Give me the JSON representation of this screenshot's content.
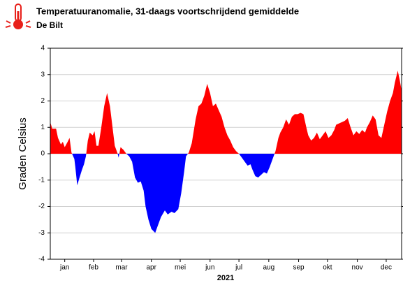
{
  "chart_data": {
    "type": "area",
    "title": "Temperatuuranomalie, 31-daags voortschrijdend gemiddelde",
    "subtitle": "De Bilt",
    "ylabel": "Graden Celsius",
    "xlabel": "2021",
    "pos_color": "#ff0000",
    "neg_color": "#0000ff",
    "grid": true,
    "xlim": [
      0,
      365
    ],
    "ylim": [
      -4,
      4
    ],
    "yticks": [
      -4,
      -3,
      -2,
      -1,
      0,
      1,
      2,
      3,
      4
    ],
    "xticks": [
      {
        "value": 15,
        "label": "jan"
      },
      {
        "value": 45,
        "label": "feb"
      },
      {
        "value": 74,
        "label": "mar"
      },
      {
        "value": 105,
        "label": "apr"
      },
      {
        "value": 135,
        "label": "mei"
      },
      {
        "value": 166,
        "label": "jun"
      },
      {
        "value": 196,
        "label": "jul"
      },
      {
        "value": 227,
        "label": "aug"
      },
      {
        "value": 258,
        "label": "sep"
      },
      {
        "value": 288,
        "label": "okt"
      },
      {
        "value": 319,
        "label": "nov"
      },
      {
        "value": 349,
        "label": "dec"
      }
    ],
    "x": [
      0,
      2,
      6,
      8,
      11,
      13,
      15,
      18,
      20,
      22,
      25,
      26,
      28,
      30,
      33,
      35,
      37,
      39,
      41,
      44,
      46,
      48,
      50,
      53,
      56,
      59,
      62,
      65,
      67,
      70,
      71,
      73,
      76,
      79,
      82,
      85,
      88,
      91,
      94,
      97,
      99,
      102,
      105,
      109,
      112,
      115,
      119,
      122,
      126,
      129,
      133,
      136,
      139,
      141,
      144,
      147,
      151,
      154,
      157,
      160,
      163,
      166,
      169,
      172,
      175,
      178,
      181,
      184,
      187,
      190,
      193,
      196,
      199,
      202,
      205,
      208,
      210,
      213,
      216,
      219,
      222,
      225,
      228,
      231,
      234,
      237,
      239,
      242,
      245,
      248,
      251,
      254,
      257,
      260,
      263,
      266,
      268,
      271,
      274,
      277,
      280,
      283,
      286,
      289,
      292,
      295,
      297,
      300,
      303,
      306,
      309,
      312,
      315,
      318,
      321,
      324,
      327,
      329,
      332,
      335,
      338,
      341,
      344,
      347,
      350,
      353,
      356,
      358,
      361,
      363,
      365
    ],
    "values": [
      1.2,
      0.95,
      0.95,
      0.6,
      0.35,
      0.45,
      0.25,
      0.45,
      0.6,
      0.05,
      -0.2,
      -0.5,
      -1.2,
      -0.95,
      -0.6,
      -0.4,
      -0.1,
      0.5,
      0.8,
      0.7,
      0.85,
      0.3,
      0.3,
      1.0,
      1.8,
      2.3,
      1.8,
      0.9,
      0.3,
      0.0,
      -0.15,
      0.25,
      0.15,
      0.0,
      -0.1,
      -0.3,
      -0.9,
      -1.1,
      -1.05,
      -1.4,
      -2.0,
      -2.5,
      -2.85,
      -3.0,
      -2.7,
      -2.4,
      -2.15,
      -2.3,
      -2.2,
      -2.25,
      -2.1,
      -1.5,
      -0.7,
      -0.1,
      0.05,
      0.4,
      1.3,
      1.8,
      1.9,
      2.2,
      2.65,
      2.3,
      1.8,
      1.9,
      1.65,
      1.4,
      1.0,
      0.7,
      0.5,
      0.25,
      0.1,
      0.0,
      -0.15,
      -0.3,
      -0.45,
      -0.4,
      -0.6,
      -0.85,
      -0.9,
      -0.8,
      -0.7,
      -0.75,
      -0.5,
      -0.2,
      0.1,
      0.6,
      0.8,
      1.0,
      1.3,
      1.1,
      1.4,
      1.5,
      1.5,
      1.55,
      1.5,
      1.0,
      0.7,
      0.5,
      0.6,
      0.8,
      0.55,
      0.7,
      0.85,
      0.6,
      0.7,
      0.9,
      1.1,
      1.15,
      1.2,
      1.25,
      1.35,
      1.0,
      0.7,
      0.85,
      0.75,
      0.9,
      0.8,
      1.0,
      1.2,
      1.45,
      1.3,
      0.7,
      0.6,
      1.1,
      1.6,
      2.0,
      2.3,
      2.7,
      3.15,
      2.8,
      2.4
    ]
  }
}
